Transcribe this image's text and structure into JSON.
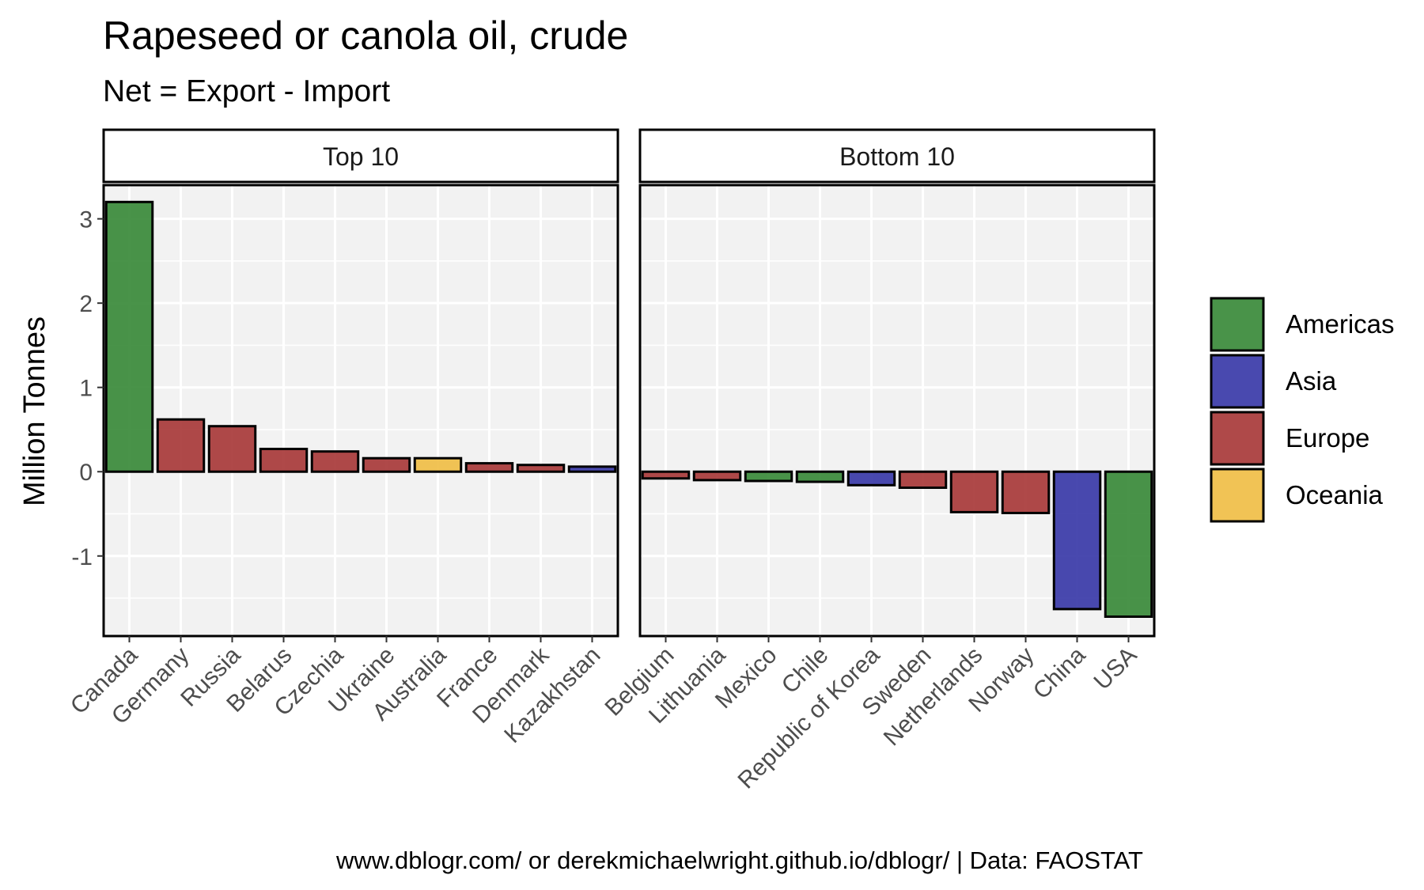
{
  "chart_data": {
    "type": "bar",
    "title": "Rapeseed or canola oil, crude",
    "subtitle": "Net = Export - Import",
    "ylabel": "Million Tonnes",
    "xlabel": "",
    "ylim": [
      -1.95,
      3.4
    ],
    "yticks": [
      -1,
      0,
      1,
      2,
      3
    ],
    "grid": true,
    "legend_position": "right",
    "legend": [
      {
        "name": "Americas",
        "color": "#3a8a3a"
      },
      {
        "name": "Asia",
        "color": "#3a3aa8"
      },
      {
        "name": "Europe",
        "color": "#a83a3a"
      },
      {
        "name": "Oceania",
        "color": "#f0be46"
      }
    ],
    "panels": [
      {
        "label": "Top 10",
        "categories": [
          "Canada",
          "Germany",
          "Russia",
          "Belarus",
          "Czechia",
          "Ukraine",
          "Australia",
          "France",
          "Denmark",
          "Kazakhstan"
        ],
        "values": [
          3.2,
          0.62,
          0.54,
          0.27,
          0.24,
          0.16,
          0.16,
          0.1,
          0.08,
          0.06
        ],
        "regions": [
          "Americas",
          "Europe",
          "Europe",
          "Europe",
          "Europe",
          "Europe",
          "Oceania",
          "Europe",
          "Europe",
          "Asia"
        ]
      },
      {
        "label": "Bottom 10",
        "categories": [
          "Belgium",
          "Lithuania",
          "Mexico",
          "Chile",
          "Republic of Korea",
          "Sweden",
          "Netherlands",
          "Norway",
          "China",
          "USA"
        ],
        "values": [
          -0.08,
          -0.1,
          -0.11,
          -0.12,
          -0.16,
          -0.19,
          -0.48,
          -0.49,
          -1.63,
          -1.72
        ],
        "regions": [
          "Europe",
          "Europe",
          "Americas",
          "Americas",
          "Asia",
          "Europe",
          "Europe",
          "Europe",
          "Asia",
          "Americas"
        ]
      }
    ]
  },
  "caption": "www.dblogr.com/ or derekmichaelwright.github.io/dblogr/ | Data: FAOSTAT"
}
